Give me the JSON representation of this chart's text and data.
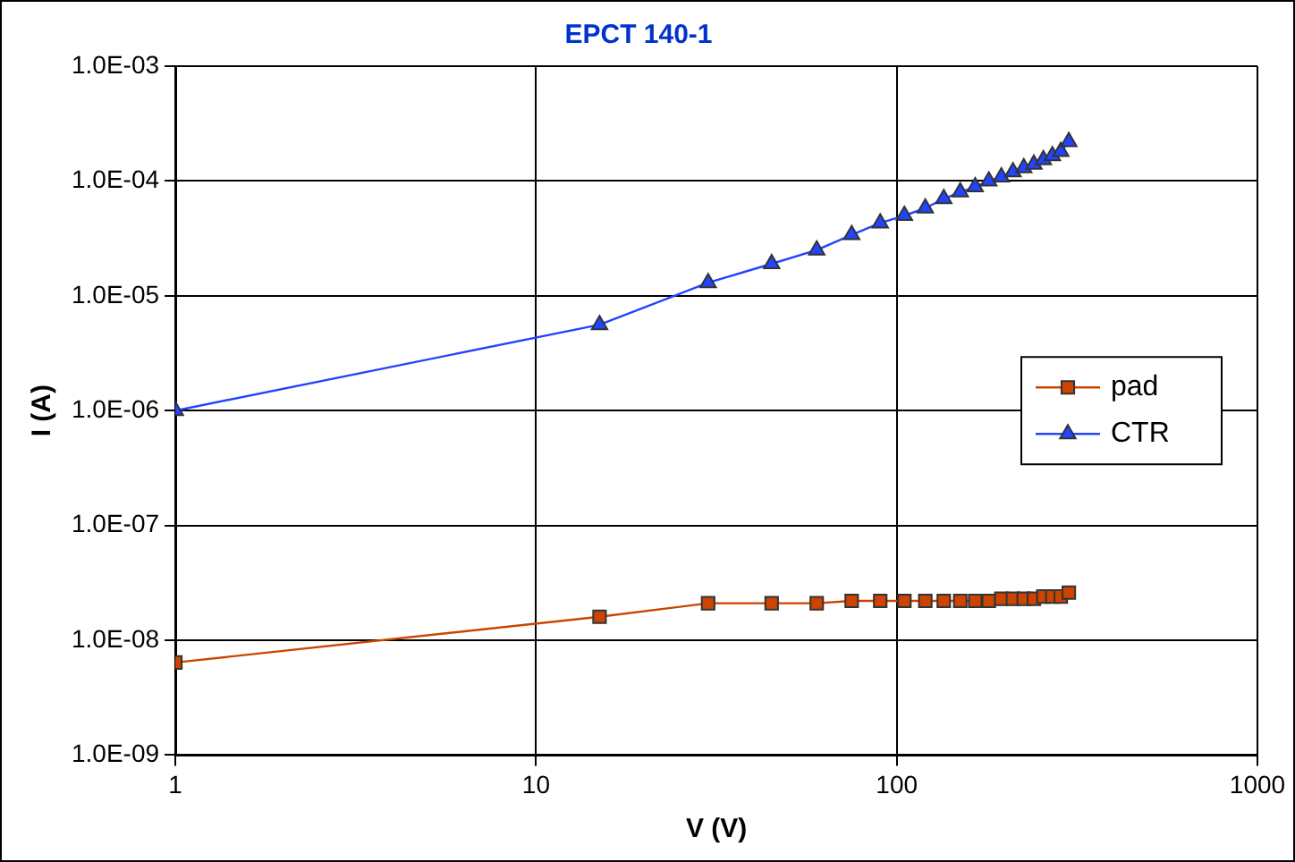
{
  "chart_data": {
    "type": "line",
    "title": "EPCT 140-1",
    "xlabel": "V (V)",
    "ylabel": "I (A)",
    "log": "xy",
    "grid": true,
    "legend": "right",
    "line_style": "solid",
    "x": [
      1,
      15,
      30,
      45,
      60,
      75,
      90,
      105,
      120,
      135,
      150,
      165,
      180,
      195,
      210,
      225,
      240,
      255,
      270,
      285,
      300
    ],
    "xlim": [
      1,
      1000
    ],
    "xticks": [
      1,
      10,
      100,
      1000
    ],
    "ylim": [
      1e-09,
      0.001
    ],
    "yticks": [
      {
        "value": 1e-09,
        "label": "1.0E-09"
      },
      {
        "value": 1e-08,
        "label": "1.0E-08"
      },
      {
        "value": 1e-07,
        "label": "1.0E-07"
      },
      {
        "value": 1e-06,
        "label": "1.0E-06"
      },
      {
        "value": 1e-05,
        "label": "1.0E-05"
      },
      {
        "value": 0.0001,
        "label": "1.0E-04"
      },
      {
        "value": 0.001,
        "label": "1.0E-03"
      }
    ],
    "series": [
      {
        "name": "pad",
        "color": "#cc4400",
        "marker": "square",
        "values": [
          6.4e-09,
          1.6e-08,
          2.1e-08,
          2.1e-08,
          2.1e-08,
          2.2e-08,
          2.2e-08,
          2.2e-08,
          2.2e-08,
          2.2e-08,
          2.2e-08,
          2.2e-08,
          2.2e-08,
          2.3e-08,
          2.3e-08,
          2.3e-08,
          2.3e-08,
          2.4e-08,
          2.4e-08,
          2.4e-08,
          2.6e-08
        ]
      },
      {
        "name": "CTR",
        "color": "#2244ff",
        "marker": "triangle",
        "values": [
          1e-06,
          5.6e-06,
          1.3e-05,
          1.9e-05,
          2.5e-05,
          3.4e-05,
          4.3e-05,
          5e-05,
          5.8e-05,
          7e-05,
          8e-05,
          8.9e-05,
          0.0001,
          0.000108,
          0.00012,
          0.00013,
          0.00014,
          0.000153,
          0.000166,
          0.00018,
          0.00022
        ]
      }
    ]
  }
}
